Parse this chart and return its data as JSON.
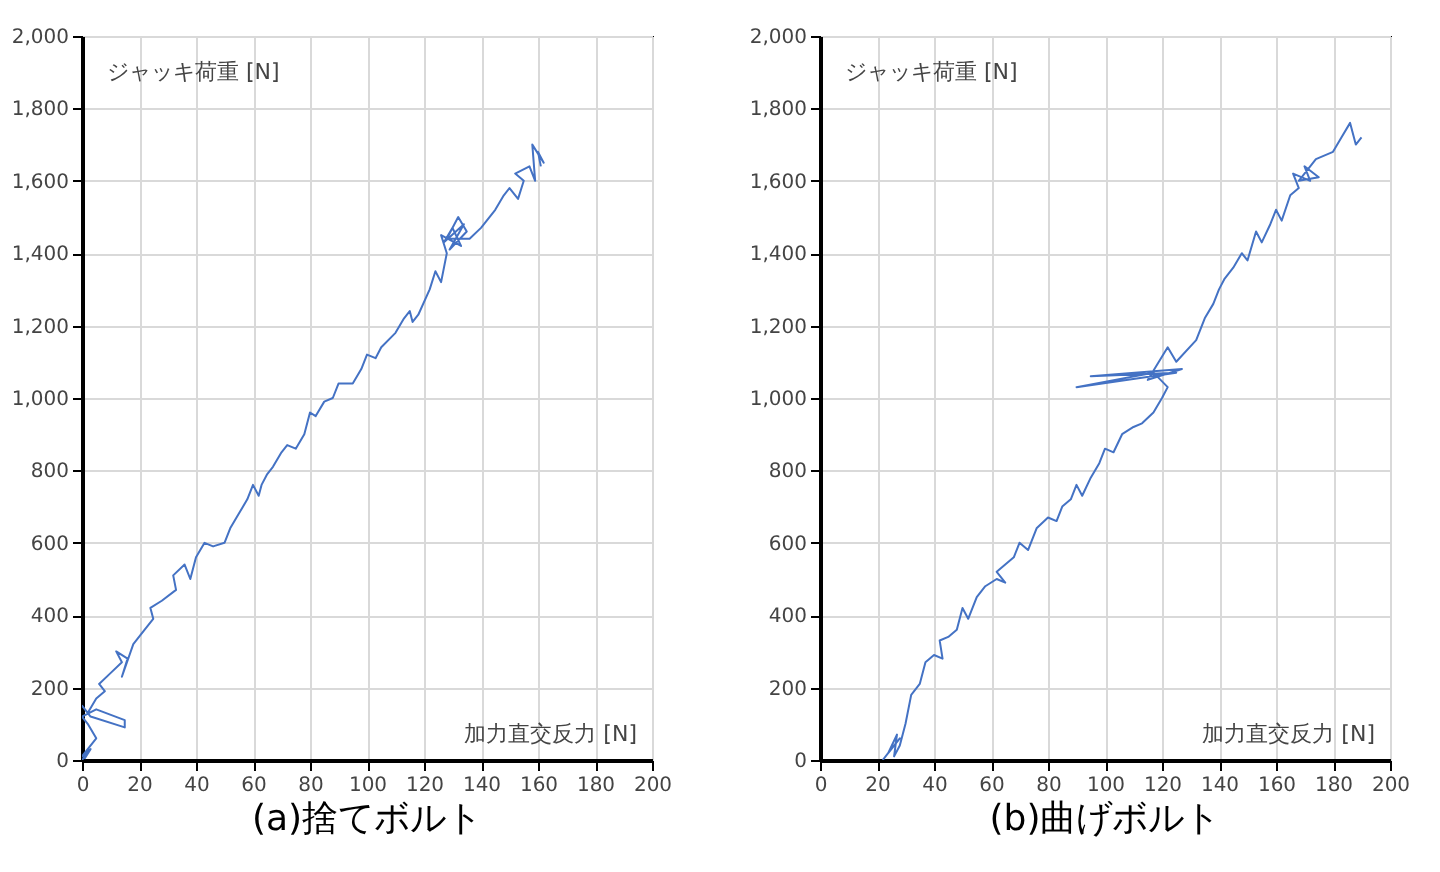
{
  "chart_data": [
    {
      "type": "line",
      "title": "(a)捨てボルト",
      "xlabel": "加力直交反力 [N]",
      "ylabel": "ジャッキ荷重 [N]",
      "xlim": [
        0,
        200
      ],
      "ylim": [
        0,
        2000
      ],
      "xticks": [
        0,
        20,
        40,
        60,
        80,
        100,
        120,
        140,
        160,
        180,
        200
      ],
      "yticks": [
        0,
        200,
        400,
        600,
        800,
        {
          "value": 1000,
          "label": "1,000"
        },
        {
          "value": 1200,
          "label": "1,200"
        },
        {
          "value": 1400,
          "label": "1,400"
        },
        {
          "value": 1600,
          "label": "1,600"
        },
        {
          "value": 1800,
          "label": "1,800"
        },
        {
          "value": 2000,
          "label": "2,000"
        }
      ],
      "grid": true,
      "series": [
        {
          "color": "#4472c4",
          "x": [
            0,
            2,
            1,
            3,
            0,
            5,
            2,
            0,
            5,
            15,
            15,
            3,
            0,
            2,
            5,
            8,
            6,
            10,
            14,
            12,
            16,
            14,
            18,
            22,
            25,
            24,
            28,
            33,
            32,
            36,
            38,
            40,
            43,
            46,
            50,
            52,
            55,
            58,
            60,
            62,
            63,
            65,
            67,
            70,
            72,
            75,
            78,
            80,
            82,
            85,
            88,
            90,
            95,
            98,
            100,
            103,
            105,
            110,
            113,
            115,
            116,
            118,
            122,
            124,
            126,
            128,
            126,
            133,
            130,
            127,
            134,
            129,
            135,
            132,
            128,
            136,
            140,
            145,
            148,
            150,
            153,
            155,
            152,
            157,
            159,
            158,
            162,
            160,
            161
          ],
          "values": [
            0,
            20,
            5,
            30,
            10,
            60,
            100,
            120,
            140,
            110,
            90,
            120,
            150,
            130,
            170,
            190,
            210,
            240,
            270,
            300,
            280,
            230,
            320,
            360,
            390,
            420,
            440,
            470,
            510,
            540,
            500,
            560,
            600,
            590,
            600,
            640,
            680,
            720,
            760,
            730,
            760,
            790,
            810,
            850,
            870,
            860,
            900,
            960,
            950,
            990,
            1000,
            1040,
            1040,
            1080,
            1120,
            1110,
            1140,
            1180,
            1220,
            1240,
            1210,
            1230,
            1300,
            1350,
            1320,
            1400,
            1450,
            1420,
            1470,
            1430,
            1480,
            1410,
            1460,
            1500,
            1440,
            1440,
            1470,
            1520,
            1560,
            1580,
            1550,
            1600,
            1620,
            1640,
            1600,
            1700,
            1650,
            1680,
            1640
          ]
        }
      ]
    },
    {
      "type": "line",
      "title": "(b)曲げボルト",
      "xlabel": "加力直交反力 [N]",
      "ylabel": "ジャッキ荷重 [N]",
      "xlim": [
        0,
        200
      ],
      "ylim": [
        0,
        2000
      ],
      "xticks": [
        0,
        20,
        40,
        60,
        80,
        100,
        120,
        140,
        160,
        180,
        200
      ],
      "yticks": [
        0,
        200,
        400,
        600,
        800,
        {
          "value": 1000,
          "label": "1,000"
        },
        {
          "value": 1200,
          "label": "1,200"
        },
        {
          "value": 1400,
          "label": "1,400"
        },
        {
          "value": 1600,
          "label": "1,600"
        },
        {
          "value": 1800,
          "label": "1,800"
        },
        {
          "value": 2000,
          "label": "2,000"
        }
      ],
      "grid": true,
      "series": [
        {
          "color": "#4472c4",
          "x": [
            22,
            25,
            28,
            24,
            27,
            26,
            28,
            30,
            32,
            35,
            37,
            40,
            43,
            42,
            45,
            48,
            50,
            52,
            55,
            58,
            62,
            65,
            62,
            68,
            70,
            73,
            76,
            80,
            83,
            85,
            88,
            90,
            92,
            95,
            98,
            100,
            103,
            106,
            110,
            113,
            117,
            120,
            122,
            117,
            90,
            125,
            95,
            127,
            115,
            122,
            125,
            132,
            135,
            138,
            140,
            142,
            145,
            148,
            150,
            153,
            155,
            158,
            160,
            162,
            165,
            168,
            166,
            172,
            170,
            175,
            168,
            174,
            180,
            183,
            186,
            188,
            190
          ],
          "values": [
            0,
            30,
            60,
            20,
            70,
            10,
            40,
            100,
            180,
            210,
            270,
            290,
            280,
            330,
            340,
            360,
            420,
            390,
            450,
            480,
            500,
            490,
            520,
            560,
            600,
            580,
            640,
            670,
            660,
            700,
            720,
            760,
            730,
            780,
            820,
            860,
            850,
            900,
            920,
            930,
            960,
            1000,
            1030,
            1070,
            1030,
            1070,
            1060,
            1080,
            1050,
            1140,
            1100,
            1160,
            1220,
            1260,
            1300,
            1330,
            1360,
            1400,
            1380,
            1460,
            1430,
            1480,
            1520,
            1490,
            1560,
            1580,
            1620,
            1600,
            1640,
            1610,
            1600,
            1660,
            1680,
            1720,
            1760,
            1700,
            1720
          ]
        }
      ]
    }
  ]
}
